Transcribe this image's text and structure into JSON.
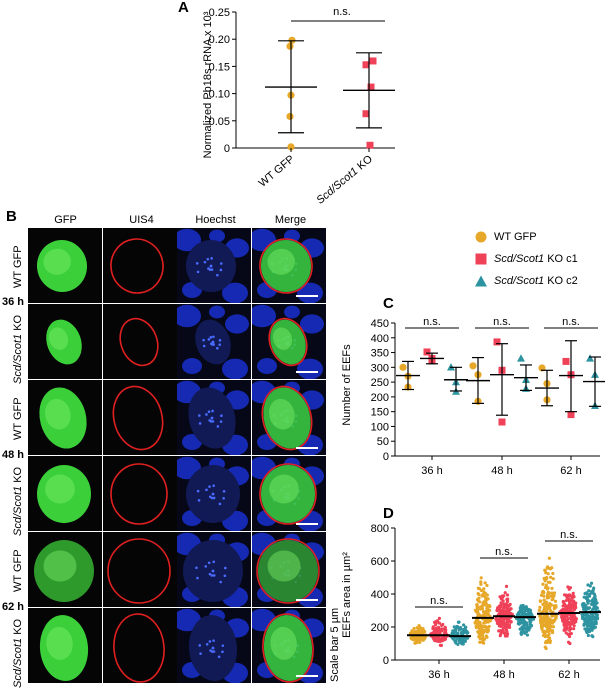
{
  "panels": {
    "a": "A",
    "b": "B",
    "c": "C",
    "d": "D"
  },
  "colors": {
    "wt": "#E7A82A",
    "c1": "#EF4158",
    "c2": "#2E93A0"
  },
  "microscopy": {
    "columns": [
      "GFP",
      "UIS4",
      "Hoechst",
      "Merge"
    ],
    "timepoints": [
      "36 h",
      "48 h",
      "62 h"
    ],
    "rows": [
      {
        "label": "WT GFP"
      },
      {
        "label_italic": "Scd/Scot1",
        "label_rest": " KO"
      },
      {
        "label": "WT GFP"
      },
      {
        "label_italic": "Scd/Scot1",
        "label_rest": " KO"
      },
      {
        "label": "WT GFP"
      },
      {
        "label_italic": "Scd/Scot1",
        "label_rest": " KO"
      }
    ],
    "scale_bar": "Scale bar 5 µm"
  },
  "legend": {
    "wt": "WT GFP",
    "c1_italic": "Scd/Scot1",
    "c1_rest": " KO c1",
    "c2_italic": "Scd/Scot1",
    "c2_rest": " KO c2"
  },
  "chart_data": [
    {
      "id": "A",
      "type": "scatter",
      "ylabel": "Normalized Pb18s rRNA x 10³",
      "ylim": [
        0,
        0.25
      ],
      "yticks": [
        "0",
        "0.05",
        "0.10",
        "0.15",
        "0.20",
        "0.25"
      ],
      "categories": [
        "WT GFP",
        "Scd/Scot1 KO"
      ],
      "significance": "n.s.",
      "series": [
        {
          "name": "WT GFP",
          "color_key": "wt",
          "marker": "circle",
          "mean": 0.112,
          "lower": 0.028,
          "upper": 0.197,
          "points": [
            0.198,
            0.187,
            0.097,
            0.058,
            0.002
          ]
        },
        {
          "name": "Scd/Scot1 KO",
          "color_key": "c1",
          "marker": "square",
          "mean": 0.106,
          "lower": 0.037,
          "upper": 0.175,
          "points": [
            0.16,
            0.153,
            0.112,
            0.063,
            0.005
          ]
        }
      ]
    },
    {
      "id": "C",
      "type": "scatter",
      "ylabel": "Number of EEFs",
      "ylim": [
        0,
        450
      ],
      "yticks": [
        "0",
        "50",
        "100",
        "150",
        "200",
        "250",
        "300",
        "350",
        "400",
        "450"
      ],
      "categories": [
        "36 h",
        "48 h",
        "62 h"
      ],
      "significance": [
        "n.s.",
        "n.s.",
        "n.s."
      ],
      "series": [
        {
          "name": "WT GFP",
          "color_key": "wt",
          "marker": "circle",
          "mean": [
            272,
            255,
            230
          ],
          "lower": [
            225,
            178,
            170
          ],
          "upper": [
            320,
            333,
            290
          ],
          "points": [
            [
              300,
              270,
              233
            ],
            [
              305,
              275,
              185
            ],
            [
              298,
              245,
              190
            ]
          ]
        },
        {
          "name": "Scd/Scot1 KO c1",
          "color_key": "c1",
          "marker": "square",
          "mean": [
            330,
            275,
            272
          ],
          "lower": [
            312,
            138,
            150
          ],
          "upper": [
            348,
            380,
            390
          ],
          "points": [
            [
              352,
              330,
              322
            ],
            [
              386,
              290,
              115
            ],
            [
              320,
              275,
              140
            ]
          ]
        },
        {
          "name": "Scd/Scot1 KO c2",
          "color_key": "c2",
          "marker": "triangle",
          "mean": [
            258,
            265,
            252
          ],
          "lower": [
            220,
            222,
            168
          ],
          "upper": [
            300,
            308,
            335
          ],
          "points": [
            [
              300,
              250,
              218
            ],
            [
              330,
              258,
              228
            ],
            [
              330,
              275,
              170
            ]
          ]
        }
      ]
    },
    {
      "id": "D",
      "type": "scatter",
      "ylabel": "EEFs area in µm²",
      "ylim": [
        0,
        800
      ],
      "yticks": [
        "0",
        "200",
        "400",
        "600",
        "800"
      ],
      "categories": [
        "36 h",
        "48 h",
        "62 h"
      ],
      "significance": [
        "n.s.",
        "n.s.",
        "n.s."
      ],
      "series": [
        {
          "name": "WT GFP",
          "color_key": "wt",
          "medians": [
            150,
            255,
            280
          ],
          "ranges": [
            [
              90,
              235
            ],
            [
              60,
              560
            ],
            [
              40,
              720
            ]
          ],
          "n": [
            90,
            170,
            190
          ]
        },
        {
          "name": "Scd/Scot1 KO c1",
          "color_key": "c1",
          "medians": [
            150,
            265,
            285
          ],
          "ranges": [
            [
              80,
              285
            ],
            [
              90,
              470
            ],
            [
              90,
              480
            ]
          ],
          "n": [
            90,
            150,
            160
          ]
        },
        {
          "name": "Scd/Scot1 KO c2",
          "color_key": "c2",
          "medians": [
            145,
            260,
            290
          ],
          "ranges": [
            [
              80,
              275
            ],
            [
              100,
              360
            ],
            [
              90,
              525
            ]
          ],
          "n": [
            80,
            130,
            170
          ]
        }
      ]
    }
  ]
}
